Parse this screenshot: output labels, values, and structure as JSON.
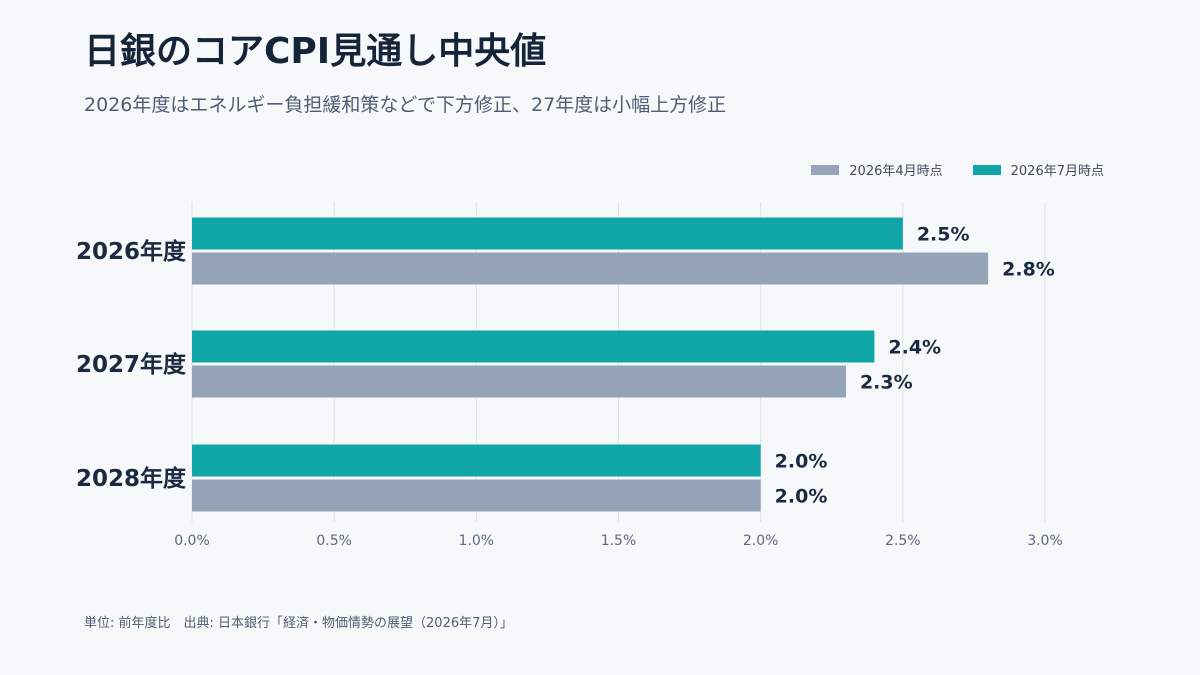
{
  "header": {
    "title": "日銀のコアCPI見通し中央値",
    "subtitle": "2026年度はエネルギー負担緩和策などで下方修正、27年度は小幅上方修正"
  },
  "footer": {
    "note": "単位: 前年度比　出典: 日本銀行「経済・物価情勢の展望（2026年7月）」"
  },
  "colors": {
    "april": "#95a3b8",
    "july": "#10a6a8",
    "grid": "#dde2e8"
  },
  "chart_data": {
    "type": "bar",
    "orientation": "horizontal",
    "categories": [
      "2026年度",
      "2027年度",
      "2028年度"
    ],
    "series": [
      {
        "name": "2026年7月時点",
        "values": [
          2.5,
          2.4,
          2.0
        ],
        "labels": [
          "2.5%",
          "2.4%",
          "2.0%"
        ]
      },
      {
        "name": "2026年4月時点",
        "values": [
          2.8,
          2.3,
          2.0
        ],
        "labels": [
          "2.8%",
          "2.3%",
          "2.0%"
        ]
      }
    ],
    "legend_order": [
      "2026年4月時点",
      "2026年7月時点"
    ],
    "xlim": [
      0,
      3.0
    ],
    "xticks": [
      0,
      0.5,
      1.0,
      1.5,
      2.0,
      2.5,
      3.0
    ],
    "xtick_labels": [
      "0.0%",
      "0.5%",
      "1.0%",
      "1.5%",
      "2.0%",
      "2.5%",
      "3.0%"
    ],
    "grid": true,
    "legend_position": "top-right"
  }
}
